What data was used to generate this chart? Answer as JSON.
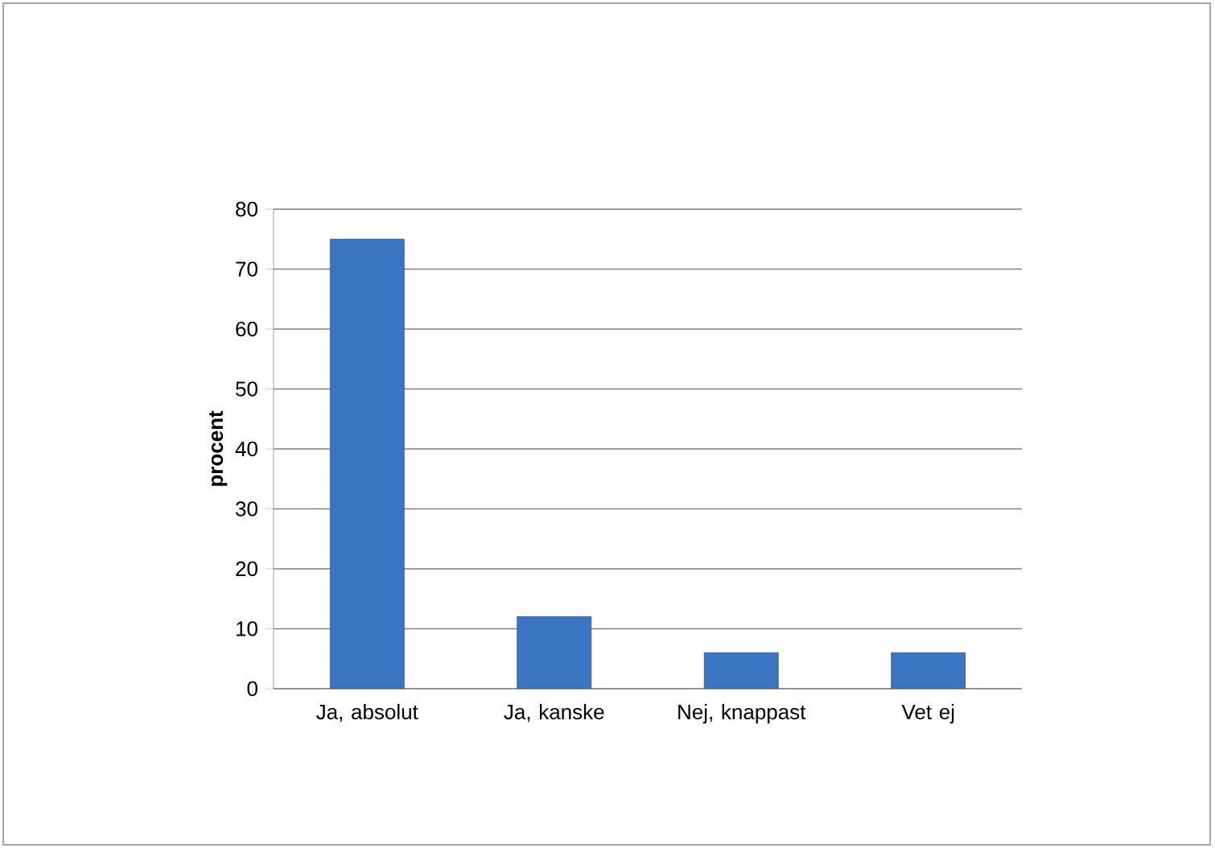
{
  "chart_data": {
    "type": "bar",
    "ylabel": "procent",
    "categories": [
      "Ja, absolut",
      "Ja, kanske",
      "Nej, knappast",
      "Vet ej"
    ],
    "values": [
      75,
      12,
      6,
      6
    ],
    "color": "#3b75c2",
    "ylim": [
      0,
      80
    ],
    "yticks": [
      0,
      10,
      20,
      30,
      40,
      50,
      60,
      70,
      80
    ],
    "grid": "y"
  }
}
